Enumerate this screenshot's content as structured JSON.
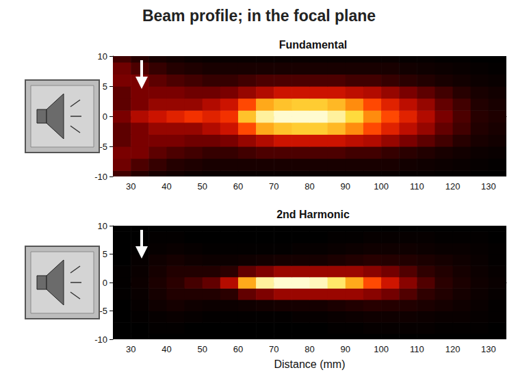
{
  "title": "Beam profile; in the focal plane",
  "chart_data": [
    {
      "type": "heatmap",
      "title": "Fundamental",
      "x": [
        27.5,
        32.5,
        37.5,
        42.5,
        47.5,
        52.5,
        57.5,
        62.5,
        67.5,
        72.5,
        77.5,
        82.5,
        87.5,
        92.5,
        97.5,
        102.5,
        107.5,
        112.5,
        117.5,
        122.5,
        127.5,
        132.5
      ],
      "y": [
        -10,
        -8,
        -6,
        -4,
        -2,
        0,
        2,
        4,
        6,
        8,
        10
      ],
      "cells": [
        [
          0.2,
          0.15,
          0.1,
          0.08,
          0.06,
          0.05,
          0.05,
          0.05,
          0.05,
          0.05,
          0.05,
          0.05,
          0.05,
          0.05,
          0.05,
          0.05,
          0.04,
          0.04,
          0.03,
          0.03,
          0.02,
          0.02
        ],
        [
          0.28,
          0.22,
          0.18,
          0.14,
          0.12,
          0.1,
          0.1,
          0.1,
          0.1,
          0.1,
          0.1,
          0.1,
          0.1,
          0.1,
          0.1,
          0.1,
          0.08,
          0.07,
          0.06,
          0.05,
          0.04,
          0.03
        ],
        [
          0.3,
          0.3,
          0.25,
          0.22,
          0.2,
          0.18,
          0.18,
          0.2,
          0.22,
          0.22,
          0.22,
          0.22,
          0.22,
          0.2,
          0.2,
          0.18,
          0.16,
          0.13,
          0.1,
          0.08,
          0.06,
          0.05
        ],
        [
          0.25,
          0.3,
          0.3,
          0.3,
          0.28,
          0.28,
          0.3,
          0.35,
          0.4,
          0.45,
          0.45,
          0.45,
          0.45,
          0.42,
          0.4,
          0.35,
          0.3,
          0.25,
          0.2,
          0.15,
          0.1,
          0.08
        ],
        [
          0.25,
          0.3,
          0.35,
          0.35,
          0.35,
          0.4,
          0.45,
          0.6,
          0.75,
          0.8,
          0.82,
          0.82,
          0.78,
          0.7,
          0.6,
          0.5,
          0.42,
          0.35,
          0.26,
          0.2,
          0.13,
          0.1
        ],
        [
          0.3,
          0.4,
          0.45,
          0.5,
          0.55,
          0.5,
          0.55,
          0.8,
          0.95,
          1.0,
          1.0,
          1.0,
          0.95,
          0.85,
          0.7,
          0.6,
          0.5,
          0.4,
          0.3,
          0.22,
          0.15,
          0.12
        ],
        [
          0.25,
          0.3,
          0.35,
          0.35,
          0.35,
          0.4,
          0.45,
          0.6,
          0.75,
          0.8,
          0.82,
          0.82,
          0.78,
          0.7,
          0.6,
          0.5,
          0.42,
          0.35,
          0.26,
          0.2,
          0.13,
          0.1
        ],
        [
          0.25,
          0.3,
          0.3,
          0.3,
          0.28,
          0.28,
          0.3,
          0.35,
          0.4,
          0.45,
          0.45,
          0.45,
          0.45,
          0.42,
          0.4,
          0.35,
          0.3,
          0.25,
          0.2,
          0.15,
          0.1,
          0.08
        ],
        [
          0.3,
          0.3,
          0.25,
          0.22,
          0.2,
          0.18,
          0.18,
          0.2,
          0.22,
          0.22,
          0.22,
          0.22,
          0.22,
          0.2,
          0.2,
          0.18,
          0.16,
          0.13,
          0.1,
          0.08,
          0.06,
          0.05
        ],
        [
          0.28,
          0.22,
          0.18,
          0.14,
          0.12,
          0.1,
          0.1,
          0.1,
          0.1,
          0.1,
          0.1,
          0.1,
          0.1,
          0.1,
          0.1,
          0.1,
          0.08,
          0.07,
          0.06,
          0.05,
          0.04,
          0.03
        ],
        [
          0.2,
          0.15,
          0.1,
          0.08,
          0.06,
          0.05,
          0.05,
          0.05,
          0.05,
          0.05,
          0.05,
          0.05,
          0.05,
          0.05,
          0.05,
          0.05,
          0.04,
          0.04,
          0.03,
          0.03,
          0.02,
          0.02
        ]
      ],
      "xlim": [
        25,
        135
      ],
      "xticks": [
        30,
        40,
        50,
        60,
        70,
        80,
        90,
        100,
        110,
        120,
        130
      ],
      "ylim": [
        -10,
        10
      ],
      "yticks": [
        -10,
        -5,
        0,
        5,
        10
      ]
    },
    {
      "type": "heatmap",
      "title": "2nd Harmonic",
      "xlabel": "Distance (mm)",
      "x": [
        27.5,
        32.5,
        37.5,
        42.5,
        47.5,
        52.5,
        57.5,
        62.5,
        67.5,
        72.5,
        77.5,
        82.5,
        87.5,
        92.5,
        97.5,
        102.5,
        107.5,
        112.5,
        117.5,
        122.5,
        127.5,
        132.5
      ],
      "y": [
        -10,
        -8,
        -6,
        -4,
        -2,
        0,
        2,
        4,
        6,
        8,
        10
      ],
      "cells": [
        [
          0.01,
          0.01,
          0.01,
          0.01,
          0.01,
          0.01,
          0.01,
          0.01,
          0.01,
          0.01,
          0.01,
          0.01,
          0.01,
          0.01,
          0.01,
          0.01,
          0.01,
          0.01,
          0.01,
          0.01,
          0.01,
          0.01
        ],
        [
          0.01,
          0.01,
          0.02,
          0.02,
          0.01,
          0.01,
          0.01,
          0.01,
          0.01,
          0.01,
          0.01,
          0.01,
          0.02,
          0.02,
          0.03,
          0.03,
          0.03,
          0.03,
          0.02,
          0.02,
          0.02,
          0.01
        ],
        [
          0.01,
          0.02,
          0.03,
          0.04,
          0.03,
          0.02,
          0.02,
          0.02,
          0.02,
          0.02,
          0.03,
          0.03,
          0.04,
          0.05,
          0.06,
          0.06,
          0.06,
          0.05,
          0.04,
          0.04,
          0.03,
          0.02
        ],
        [
          0.01,
          0.03,
          0.06,
          0.08,
          0.06,
          0.05,
          0.05,
          0.06,
          0.07,
          0.08,
          0.08,
          0.08,
          0.1,
          0.12,
          0.14,
          0.13,
          0.12,
          0.1,
          0.08,
          0.06,
          0.04,
          0.02
        ],
        [
          0.02,
          0.04,
          0.08,
          0.12,
          0.12,
          0.12,
          0.15,
          0.25,
          0.3,
          0.35,
          0.35,
          0.35,
          0.35,
          0.35,
          0.32,
          0.28,
          0.22,
          0.16,
          0.12,
          0.08,
          0.05,
          0.03
        ],
        [
          0.02,
          0.05,
          0.1,
          0.15,
          0.2,
          0.25,
          0.4,
          0.75,
          0.95,
          1.0,
          1.0,
          0.98,
          0.9,
          0.75,
          0.6,
          0.45,
          0.32,
          0.22,
          0.15,
          0.1,
          0.06,
          0.04
        ],
        [
          0.02,
          0.04,
          0.08,
          0.12,
          0.12,
          0.12,
          0.15,
          0.25,
          0.3,
          0.35,
          0.35,
          0.35,
          0.35,
          0.35,
          0.32,
          0.28,
          0.22,
          0.16,
          0.12,
          0.08,
          0.05,
          0.03
        ],
        [
          0.01,
          0.03,
          0.06,
          0.08,
          0.06,
          0.05,
          0.05,
          0.06,
          0.07,
          0.08,
          0.08,
          0.08,
          0.1,
          0.12,
          0.14,
          0.13,
          0.12,
          0.1,
          0.08,
          0.06,
          0.04,
          0.02
        ],
        [
          0.01,
          0.02,
          0.03,
          0.04,
          0.03,
          0.02,
          0.02,
          0.02,
          0.02,
          0.02,
          0.03,
          0.03,
          0.04,
          0.05,
          0.06,
          0.06,
          0.06,
          0.05,
          0.04,
          0.04,
          0.03,
          0.02
        ],
        [
          0.01,
          0.01,
          0.02,
          0.02,
          0.01,
          0.01,
          0.01,
          0.01,
          0.01,
          0.01,
          0.01,
          0.01,
          0.02,
          0.02,
          0.03,
          0.03,
          0.03,
          0.03,
          0.02,
          0.02,
          0.02,
          0.01
        ],
        [
          0.01,
          0.01,
          0.01,
          0.01,
          0.01,
          0.01,
          0.01,
          0.01,
          0.01,
          0.01,
          0.01,
          0.01,
          0.01,
          0.01,
          0.01,
          0.01,
          0.01,
          0.01,
          0.01,
          0.01,
          0.01,
          0.01
        ]
      ],
      "xlim": [
        25,
        135
      ],
      "xticks": [
        30,
        40,
        50,
        60,
        70,
        80,
        90,
        100,
        110,
        120,
        130
      ],
      "ylim": [
        -10,
        10
      ],
      "yticks": [
        -10,
        -5,
        0,
        5,
        10
      ]
    }
  ]
}
